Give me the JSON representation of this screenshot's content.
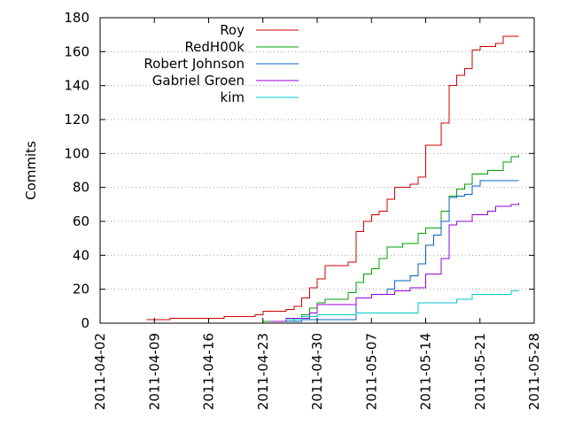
{
  "chart_data": {
    "type": "line",
    "title": "",
    "xlabel": "",
    "ylabel": "Commits",
    "xlim": [
      "2011-04-02",
      "2011-05-28"
    ],
    "ylim": [
      0,
      180
    ],
    "x_ticks": [
      "2011-04-02",
      "2011-04-09",
      "2011-04-16",
      "2011-04-23",
      "2011-04-30",
      "2011-05-07",
      "2011-05-14",
      "2011-05-21",
      "2011-05-28"
    ],
    "y_ticks": [
      0,
      20,
      40,
      60,
      80,
      100,
      120,
      140,
      160,
      180
    ],
    "grid": "horizontal dotted",
    "legend_position": "top-left",
    "step": true,
    "series": [
      {
        "name": "Roy",
        "color": "#cc0000",
        "points": [
          [
            "2011-04-08",
            2
          ],
          [
            "2011-04-11",
            3
          ],
          [
            "2011-04-17",
            3
          ],
          [
            "2011-04-18",
            4
          ],
          [
            "2011-04-22",
            5
          ],
          [
            "2011-04-23",
            7
          ],
          [
            "2011-04-26",
            8
          ],
          [
            "2011-04-27",
            10
          ],
          [
            "2011-04-28",
            15
          ],
          [
            "2011-04-29",
            21
          ],
          [
            "2011-04-30",
            26
          ],
          [
            "2011-05-01",
            34
          ],
          [
            "2011-05-04",
            36
          ],
          [
            "2011-05-05",
            54
          ],
          [
            "2011-05-06",
            60
          ],
          [
            "2011-05-07",
            64
          ],
          [
            "2011-05-08",
            66
          ],
          [
            "2011-05-09",
            73
          ],
          [
            "2011-05-10",
            80
          ],
          [
            "2011-05-12",
            82
          ],
          [
            "2011-05-13",
            86
          ],
          [
            "2011-05-14",
            105
          ],
          [
            "2011-05-16",
            118
          ],
          [
            "2011-05-17",
            140
          ],
          [
            "2011-05-18",
            146
          ],
          [
            "2011-05-19",
            150
          ],
          [
            "2011-05-20",
            161
          ],
          [
            "2011-05-21",
            163
          ],
          [
            "2011-05-23",
            165
          ],
          [
            "2011-05-24",
            169
          ],
          [
            "2011-05-26",
            169
          ]
        ]
      },
      {
        "name": "RedH00k",
        "color": "#00a000",
        "points": [
          [
            "2011-04-23",
            1
          ],
          [
            "2011-04-27",
            3
          ],
          [
            "2011-04-28",
            5
          ],
          [
            "2011-04-29",
            9
          ],
          [
            "2011-04-30",
            12
          ],
          [
            "2011-05-01",
            14
          ],
          [
            "2011-05-04",
            18
          ],
          [
            "2011-05-05",
            24
          ],
          [
            "2011-05-06",
            29
          ],
          [
            "2011-05-07",
            32
          ],
          [
            "2011-05-08",
            38
          ],
          [
            "2011-05-09",
            45
          ],
          [
            "2011-05-11",
            47
          ],
          [
            "2011-05-13",
            53
          ],
          [
            "2011-05-14",
            56
          ],
          [
            "2011-05-16",
            66
          ],
          [
            "2011-05-17",
            75
          ],
          [
            "2011-05-18",
            79
          ],
          [
            "2011-05-19",
            82
          ],
          [
            "2011-05-20",
            88
          ],
          [
            "2011-05-22",
            90
          ],
          [
            "2011-05-24",
            95
          ],
          [
            "2011-05-25",
            98
          ],
          [
            "2011-05-26",
            99
          ]
        ]
      },
      {
        "name": "Robert Johnson",
        "color": "#0060c0",
        "points": [
          [
            "2011-04-25",
            1
          ],
          [
            "2011-04-28",
            2
          ],
          [
            "2011-05-05",
            15
          ],
          [
            "2011-05-07",
            17
          ],
          [
            "2011-05-09",
            20
          ],
          [
            "2011-05-10",
            25
          ],
          [
            "2011-05-12",
            28
          ],
          [
            "2011-05-13",
            35
          ],
          [
            "2011-05-14",
            46
          ],
          [
            "2011-05-15",
            52
          ],
          [
            "2011-05-16",
            60
          ],
          [
            "2011-05-17",
            74
          ],
          [
            "2011-05-18",
            75
          ],
          [
            "2011-05-19",
            76
          ],
          [
            "2011-05-20",
            81
          ],
          [
            "2011-05-21",
            84
          ],
          [
            "2011-05-26",
            84
          ]
        ]
      },
      {
        "name": "Gabriel Groen",
        "color": "#9400d3",
        "points": [
          [
            "2011-04-24",
            1
          ],
          [
            "2011-04-26",
            3
          ],
          [
            "2011-04-29",
            6
          ],
          [
            "2011-04-30",
            11
          ],
          [
            "2011-05-05",
            15
          ],
          [
            "2011-05-07",
            17
          ],
          [
            "2011-05-10",
            19
          ],
          [
            "2011-05-12",
            21
          ],
          [
            "2011-05-14",
            29
          ],
          [
            "2011-05-16",
            38
          ],
          [
            "2011-05-17",
            58
          ],
          [
            "2011-05-18",
            60
          ],
          [
            "2011-05-20",
            64
          ],
          [
            "2011-05-22",
            66
          ],
          [
            "2011-05-23",
            69
          ],
          [
            "2011-05-25",
            70
          ],
          [
            "2011-05-26",
            71
          ]
        ]
      },
      {
        "name": "kim",
        "color": "#00c8c8",
        "points": [
          [
            "2011-04-26",
            2
          ],
          [
            "2011-04-28",
            4
          ],
          [
            "2011-04-30",
            5
          ],
          [
            "2011-05-05",
            6
          ],
          [
            "2011-05-13",
            12
          ],
          [
            "2011-05-18",
            14
          ],
          [
            "2011-05-20",
            17
          ],
          [
            "2011-05-25",
            19
          ],
          [
            "2011-05-26",
            19
          ]
        ]
      }
    ]
  }
}
